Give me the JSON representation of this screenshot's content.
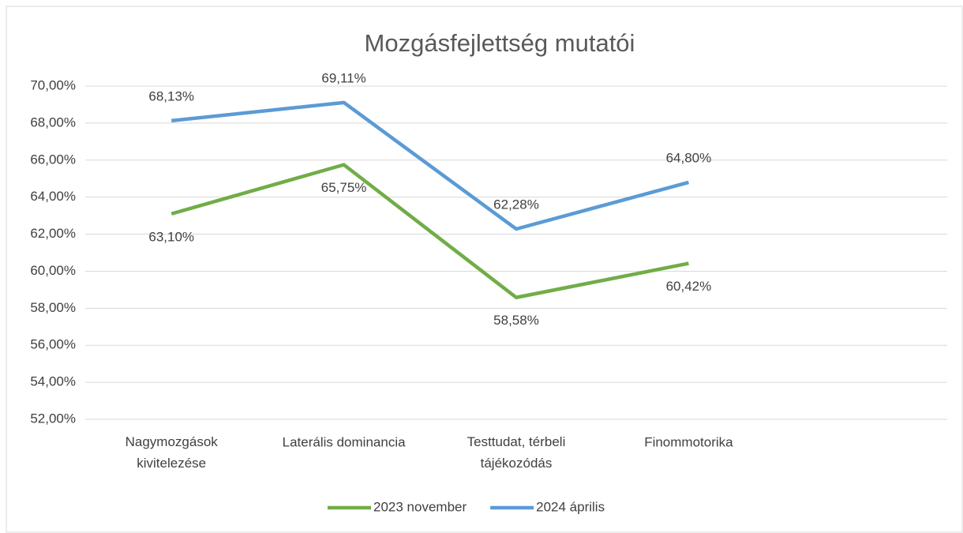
{
  "chart_data": {
    "type": "line",
    "title": "Mozgásfejlettség mutatói",
    "categories": [
      "Nagymozgások kivitelezése",
      "Laterális dominancia",
      "Testtudat, térbeli tájékozódás",
      "Finommotorika",
      null
    ],
    "series": [
      {
        "name": "2023 november",
        "color": "#70ad47",
        "values": [
          63.1,
          65.75,
          58.58,
          60.42,
          null
        ],
        "value_labels": [
          "63,10%",
          "65,75%",
          "58,58%",
          "60,42%",
          null
        ]
      },
      {
        "name": "2024 április",
        "color": "#5b9bd5",
        "values": [
          68.13,
          69.11,
          62.28,
          64.8,
          null
        ],
        "value_labels": [
          "68,13%",
          "69,11%",
          "62,28%",
          "64,80%",
          null
        ]
      }
    ],
    "ylim": [
      52,
      70
    ],
    "yticks": [
      {
        "value": 52,
        "label": "52,00%"
      },
      {
        "value": 54,
        "label": "54,00%"
      },
      {
        "value": 56,
        "label": "56,00%"
      },
      {
        "value": 58,
        "label": "58,00%"
      },
      {
        "value": 60,
        "label": "60,00%"
      },
      {
        "value": 62,
        "label": "62,00%"
      },
      {
        "value": 64,
        "label": "64,00%"
      },
      {
        "value": 66,
        "label": "66,00%"
      },
      {
        "value": 68,
        "label": "68,00%"
      },
      {
        "value": 70,
        "label": "70,00%"
      }
    ],
    "grid": true,
    "legend": "bottom"
  }
}
